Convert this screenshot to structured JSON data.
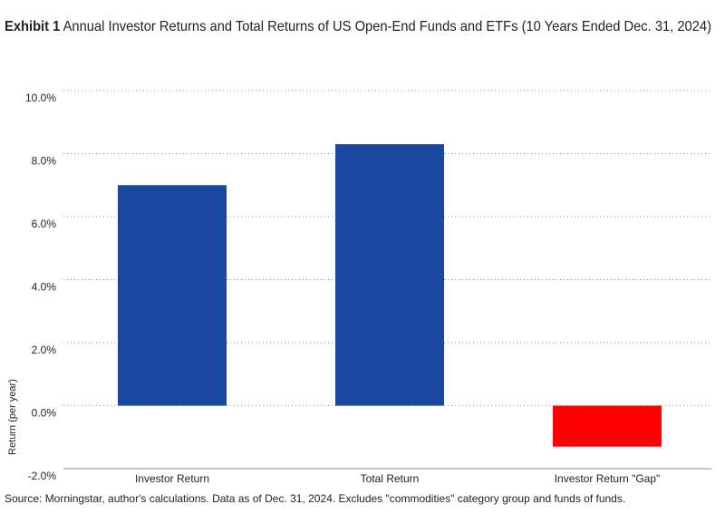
{
  "chart_data": {
    "type": "bar",
    "title_label": "Exhibit 1",
    "title": "Annual Investor Returns and Total Returns of US Open-End Funds and ETFs (10 Years Ended Dec. 31, 2024)",
    "y_label": "Return (per year)",
    "source": "Source: Morningstar, author's calculations. Data as of Dec. 31, 2024. Excludes \"commodities\" category group and funds of funds.",
    "categories": [
      "Investor Return",
      "Total Return",
      "Investor Return \"Gap\""
    ],
    "values": [
      7.0,
      8.3,
      -1.3
    ],
    "colors": [
      "#1a47a0",
      "#1a47a0",
      "#ff0000"
    ],
    "ylim": [
      -2,
      10
    ],
    "yticks": [
      {
        "value": -2,
        "label": "-2.0%"
      },
      {
        "value": 0,
        "label": "0.0%"
      },
      {
        "value": 2,
        "label": "2.0%"
      },
      {
        "value": 4,
        "label": "4.0%"
      },
      {
        "value": 6,
        "label": "6.0%"
      },
      {
        "value": 8,
        "label": "8.0%"
      },
      {
        "value": 10,
        "label": "10.0%"
      }
    ],
    "grid": true
  }
}
